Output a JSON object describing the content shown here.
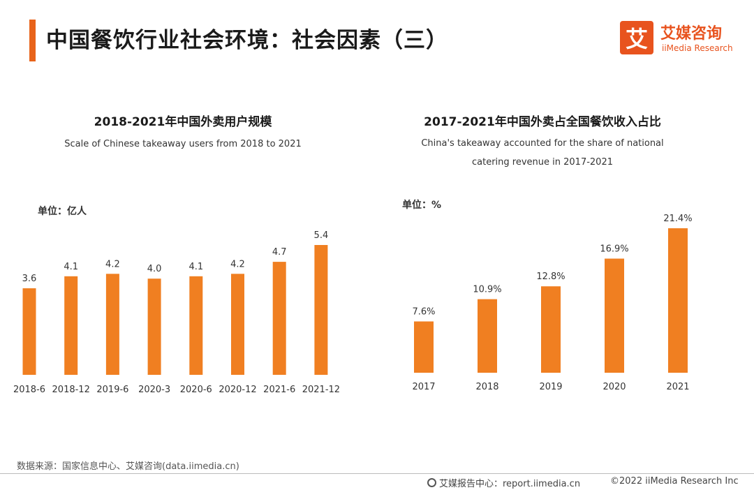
{
  "header": {
    "title": "中国餐饮行业社会环境：社会因素（三）",
    "logo_mark": "艾",
    "logo_cn": "艾媒咨询",
    "logo_en": "iiMedia Research"
  },
  "charts": {
    "left": {
      "title": "2018-2021年中国外卖用户规模",
      "subtitle": "Scale of Chinese takeaway users from 2018 to 2021",
      "unit": "单位：亿人"
    },
    "right": {
      "title": "2017-2021年中国外卖占全国餐饮收入占比",
      "subtitle_line1": "China's takeaway accounted for the share of national",
      "subtitle_line2": "catering revenue in 2017-2021",
      "unit": "单位：%"
    }
  },
  "chart_data": [
    {
      "type": "bar",
      "title": "2018-2021年中国外卖用户规模",
      "subtitle": "Scale of Chinese takeaway users from 2018 to 2021",
      "unit": "单位：亿人",
      "categories": [
        "2018-6",
        "2018-12",
        "2019-6",
        "2020-3",
        "2020-6",
        "2020-12",
        "2021-6",
        "2021-12"
      ],
      "values": [
        3.6,
        4.1,
        4.2,
        4.0,
        4.1,
        4.2,
        4.7,
        5.4
      ],
      "labels": [
        "3.6",
        "4.1",
        "4.2",
        "4.0",
        "4.1",
        "4.2",
        "4.7",
        "5.4"
      ],
      "bar_color": "#f07f21",
      "ylim": [
        0,
        5.4
      ]
    },
    {
      "type": "bar",
      "title": "2017-2021年中国外卖占全国餐饮收入占比",
      "subtitle": "China's takeaway accounted for the share of national catering revenue in 2017-2021",
      "unit": "单位：%",
      "categories": [
        "2017",
        "2018",
        "2019",
        "2020",
        "2021"
      ],
      "values": [
        7.6,
        10.9,
        12.8,
        16.9,
        21.4
      ],
      "labels": [
        "7.6%",
        "10.9%",
        "12.8%",
        "16.9%",
        "21.4%"
      ],
      "bar_color": "#f07f21",
      "ylim": [
        0,
        21.4
      ]
    }
  ],
  "footer": {
    "source": "数据来源：国家信息中心、艾媒咨询(data.iimedia.cn)",
    "report": "艾媒报告中心：report.iimedia.cn",
    "copyright": "©2022  iiMedia Research  Inc"
  }
}
